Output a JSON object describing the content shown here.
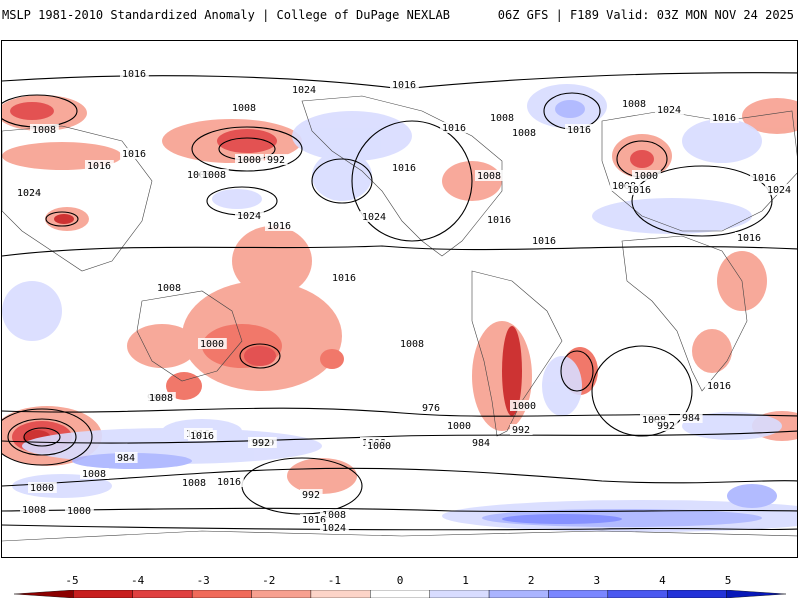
{
  "header": {
    "title_left": "MSLP 1981-2010 Standardized Anomaly | College of DuPage NEXLAB",
    "title_right": "06Z GFS | F189 Valid: 03Z MON NOV 24 2025"
  },
  "map": {
    "description_label": "MSLP standardized anomaly world map",
    "contour_labels": [
      "1016",
      "1024",
      "1016",
      "1008",
      "1008",
      "1016",
      "1016",
      "1008",
      "1016",
      "992",
      "1000",
      "1008",
      "1024",
      "1024",
      "1016",
      "1024",
      "1016",
      "1016",
      "1008",
      "1008",
      "1008",
      "1016",
      "1016",
      "1016",
      "1024",
      "1008",
      "1016",
      "1008",
      "1000",
      "1016",
      "1024",
      "1016",
      "1016",
      "1016",
      "1008",
      "1016",
      "1000",
      "1008",
      "992",
      "1016",
      "1008",
      "1016",
      "1000",
      "1008",
      "1000",
      "984",
      "992",
      "1000",
      "1008",
      "992",
      "984",
      "976",
      "992",
      "984",
      "1008",
      "1000",
      "1016",
      "1000",
      "1008",
      "992",
      "1008",
      "1016",
      "1024",
      "1008",
      "1000"
    ]
  },
  "colorbar": {
    "ticks": [
      "-5",
      "-4",
      "-3",
      "-2",
      "-1",
      "0",
      "1",
      "2",
      "3",
      "4",
      "5"
    ],
    "colors": [
      "#8b0000",
      "#c81e1e",
      "#e04040",
      "#f06a5a",
      "#f7a090",
      "#fcd4c8",
      "#ffffff",
      "#d8dcff",
      "#aab4ff",
      "#7a86ff",
      "#4a58f0",
      "#2232d8",
      "#0818b8"
    ]
  }
}
